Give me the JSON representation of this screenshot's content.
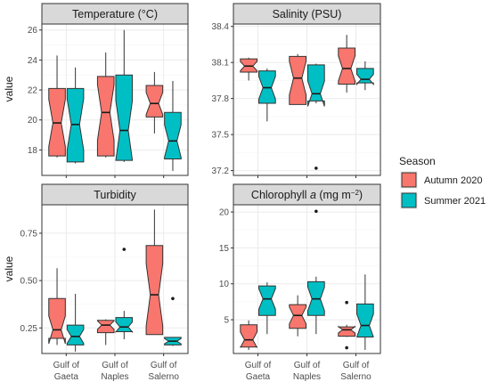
{
  "colors": {
    "autumn": "#F8766D",
    "summer": "#00BFC4",
    "strip_bg": "#d9d9d9",
    "panel_border": "#333333",
    "grid": "#ebebeb",
    "grid_minor": "#f5f5f5"
  },
  "chart_data": {
    "type": "boxplot",
    "ylabel": "value",
    "categories": [
      "Gulf of\nGaeta",
      "Gulf of\nNaples",
      "Gulf of\nSalerno"
    ],
    "legend": {
      "title": "Season",
      "entries": [
        "Autumn 2020",
        "Summer 2021"
      ],
      "placement": "right"
    },
    "panels": [
      {
        "title": "Temperature (°C)",
        "ylim": [
          16.3,
          26.4
        ],
        "yticks": [
          18,
          20,
          22,
          24,
          26
        ],
        "ytick_labels": [
          "18",
          "20",
          "22",
          "24",
          "26"
        ],
        "series": [
          {
            "name": "Autumn 2020",
            "boxes": [
              {
                "lw": 17.5,
                "q1": 17.6,
                "med": 19.8,
                "q3": 22.1,
                "uw": 24.3,
                "out": []
              },
              {
                "lw": 17.5,
                "q1": 17.6,
                "med": 20.5,
                "q3": 22.9,
                "uw": 24.5,
                "out": []
              },
              {
                "lw": 19.1,
                "q1": 20.2,
                "med": 21.1,
                "q3": 22.3,
                "uw": 23.2,
                "out": []
              }
            ]
          },
          {
            "name": "Summer 2021",
            "boxes": [
              {
                "lw": 17.1,
                "q1": 17.2,
                "med": 19.7,
                "q3": 22.1,
                "uw": 23.5,
                "out": []
              },
              {
                "lw": 17.2,
                "q1": 17.3,
                "med": 19.3,
                "q3": 23.0,
                "uw": 26.0,
                "out": []
              },
              {
                "lw": 16.6,
                "q1": 17.4,
                "med": 18.6,
                "q3": 20.5,
                "uw": 22.6,
                "out": []
              }
            ]
          }
        ]
      },
      {
        "title": "Salinity (PSU)",
        "ylim": [
          37.16,
          38.42
        ],
        "yticks": [
          37.2,
          37.5,
          37.8,
          38.1,
          38.4
        ],
        "ytick_labels": [
          "37.2",
          "37.5",
          "37.8",
          "38.1",
          "38.4"
        ],
        "series": [
          {
            "name": "Autumn 2020",
            "boxes": [
              {
                "lw": 37.95,
                "q1": 38.02,
                "med": 38.07,
                "q3": 38.13,
                "uw": 38.14,
                "out": []
              },
              {
                "lw": 37.75,
                "q1": 37.75,
                "med": 37.97,
                "q3": 38.15,
                "uw": 38.17,
                "out": []
              },
              {
                "lw": 37.85,
                "q1": 37.92,
                "med": 38.05,
                "q3": 38.22,
                "uw": 38.33,
                "out": []
              }
            ]
          },
          {
            "name": "Summer 2021",
            "boxes": [
              {
                "lw": 37.61,
                "q1": 37.76,
                "med": 37.89,
                "q3": 38.03,
                "uw": 38.05,
                "out": []
              },
              {
                "lw": 37.76,
                "q1": 37.78,
                "med": 37.84,
                "q3": 38.08,
                "uw": 38.09,
                "out": [
                  37.22
                ]
              },
              {
                "lw": 37.87,
                "q1": 37.93,
                "med": 37.96,
                "q3": 38.05,
                "uw": 38.11,
                "out": []
              }
            ]
          }
        ]
      },
      {
        "title": "Turbidity",
        "ylim": [
          0.115,
          0.9
        ],
        "yticks": [
          0.25,
          0.5,
          0.75
        ],
        "ytick_labels": [
          "0.25",
          "0.50",
          "0.75"
        ],
        "series": [
          {
            "name": "Autumn 2020",
            "boxes": [
              {
                "lw": 0.16,
                "q1": 0.195,
                "med": 0.24,
                "q3": 0.405,
                "uw": 0.565,
                "out": []
              },
              {
                "lw": 0.16,
                "q1": 0.225,
                "med": 0.265,
                "q3": 0.29,
                "uw": 0.295,
                "out": []
              },
              {
                "lw": 0.215,
                "q1": 0.215,
                "med": 0.425,
                "q3": 0.685,
                "uw": 0.875,
                "out": []
              }
            ]
          },
          {
            "name": "Summer 2021",
            "boxes": [
              {
                "lw": 0.125,
                "q1": 0.16,
                "med": 0.205,
                "q3": 0.265,
                "uw": 0.43,
                "out": []
              },
              {
                "lw": 0.19,
                "q1": 0.23,
                "med": 0.255,
                "q3": 0.305,
                "uw": 0.34,
                "out": [
                  0.665
                ]
              },
              {
                "lw": 0.155,
                "q1": 0.16,
                "med": 0.18,
                "q3": 0.2,
                "uw": 0.2,
                "out": [
                  0.405
                ]
              }
            ]
          }
        ]
      },
      {
        "title": "Chlorophyll a (mg m⁻²)",
        "title_parts": [
          "Chlorophyll ",
          "a",
          " (mg m",
          "−2",
          ")"
        ],
        "ylim": [
          0.3,
          21.0
        ],
        "yticks": [
          5,
          10,
          15,
          20
        ],
        "ytick_labels": [
          "5",
          "10",
          "15",
          "20"
        ],
        "series": [
          {
            "name": "Autumn 2020",
            "boxes": [
              {
                "lw": 0.8,
                "q1": 1.2,
                "med": 2.2,
                "q3": 4.3,
                "uw": 4.9,
                "out": []
              },
              {
                "lw": 2.7,
                "q1": 3.8,
                "med": 5.6,
                "q3": 7.1,
                "uw": 8.4,
                "out": []
              },
              {
                "lw": 2.6,
                "q1": 2.7,
                "med": 3.6,
                "q3": 4.0,
                "uw": 4.3,
                "out": [
                  7.4,
                  1.1
                ]
              }
            ]
          },
          {
            "name": "Summer 2021",
            "boxes": [
              {
                "lw": 3.0,
                "q1": 5.6,
                "med": 7.9,
                "q3": 9.7,
                "uw": 10.2,
                "out": []
              },
              {
                "lw": 3.0,
                "q1": 5.6,
                "med": 7.9,
                "q3": 10.3,
                "uw": 11.0,
                "out": [
                  20.1
                ]
              },
              {
                "lw": 0.8,
                "q1": 2.6,
                "med": 4.2,
                "q3": 7.2,
                "uw": 11.3,
                "out": []
              }
            ]
          }
        ]
      }
    ]
  }
}
